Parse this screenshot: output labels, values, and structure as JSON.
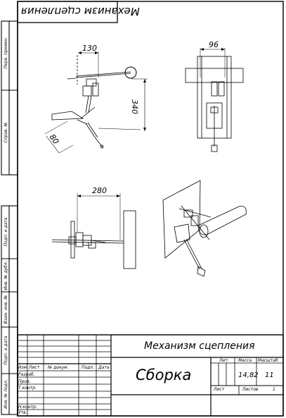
{
  "stamp_top": "Механизм сцепления",
  "dimensions": {
    "d130": "130",
    "d96": "96",
    "d340": "340",
    "d80": "80",
    "d280": "280"
  },
  "left_margin": {
    "perv_primen": "Перв. примен.",
    "sprav_no": "Справ. №",
    "podp_data_1": "Подп. и дата",
    "inv_dubl": "Инв. № дубл.",
    "vzam_inv": "Взам. инв. №",
    "podp_data_2": "Подп. и дата",
    "inv_podl": "Инв. № подл."
  },
  "title_block": {
    "designation": "Механизм сцепления",
    "name": "Сборка",
    "col_headers": {
      "izm": "Изм",
      "list": "Лист",
      "doc_no": "№ докум.",
      "podp": "Подп.",
      "data": "Дата"
    },
    "roles": {
      "razrab": "Разраб.",
      "prov": "Пров.",
      "t_kontr": "Т.контр.",
      "n_kontr": "Н.контр.",
      "utv": "Утв."
    },
    "lit_label": "Лит.",
    "massa_label": "Масса",
    "masshtab_label": "Масштаб",
    "massa_value": "14,82",
    "masshtab_value": "11",
    "list_label": "Лист",
    "listov_label": "Листов",
    "listov_value": "1"
  }
}
